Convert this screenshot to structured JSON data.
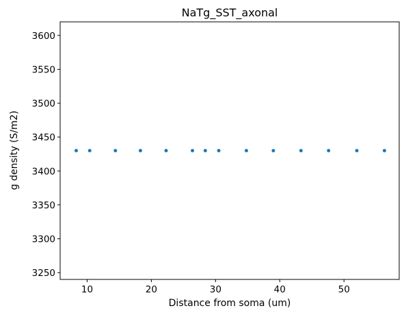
{
  "chart_data": {
    "type": "scatter",
    "title": "NaTg_SST_axonal",
    "xlabel": "Distance from soma (um)",
    "ylabel": "g density (S/m2)",
    "xlim": [
      5.8,
      58.6
    ],
    "ylim": [
      3240,
      3620
    ],
    "xticks": [
      10,
      20,
      30,
      40,
      50
    ],
    "yticks": [
      3250,
      3300,
      3350,
      3400,
      3450,
      3500,
      3550,
      3600
    ],
    "marker_color": "#1f77b4",
    "grid": false,
    "x": [
      8.3,
      10.4,
      14.4,
      18.3,
      22.3,
      26.4,
      28.4,
      30.5,
      34.8,
      39.0,
      43.3,
      47.6,
      52.0,
      56.3
    ],
    "y": [
      3430,
      3430,
      3430,
      3430,
      3430,
      3430,
      3430,
      3430,
      3430,
      3430,
      3430,
      3430,
      3430,
      3430
    ]
  }
}
